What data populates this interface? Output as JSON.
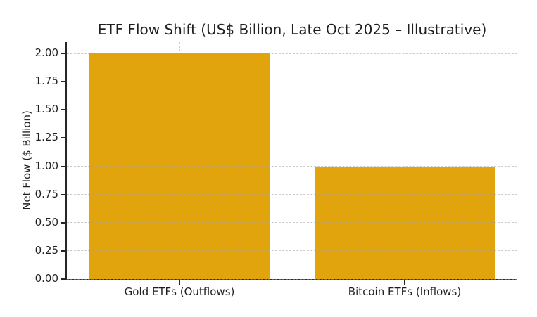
{
  "chart_data": {
    "type": "bar",
    "title": "ETF Flow Shift (US$ Billion, Late Oct 2025 – Illustrative)",
    "xlabel": "",
    "ylabel": "Net Flow ($ Billion)",
    "categories": [
      "Gold ETFs (Outflows)",
      "Bitcoin ETFs (Inflows)"
    ],
    "values": [
      2.0,
      1.0
    ],
    "ylim": [
      0,
      2.1
    ],
    "y_ticks": [
      "0.00",
      "0.25",
      "0.50",
      "0.75",
      "1.00",
      "1.25",
      "1.50",
      "1.75",
      "2.00"
    ],
    "bar_color": "#E2A40D",
    "grid": {
      "show": true,
      "style": "dashed",
      "color": "#d4d4d4"
    },
    "legend": null,
    "background": "#ffffff",
    "text_color": "#1f1f1f"
  }
}
